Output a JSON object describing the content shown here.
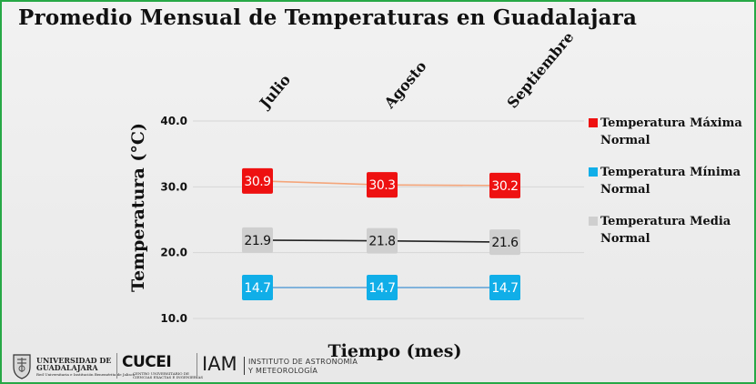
{
  "title": "Promedio Mensual de Temperaturas en Guadalajara",
  "colors": {
    "frame": "#27a846",
    "max_box": "#ee1111",
    "max_line": "#f4a57a",
    "min_box": "#10aee8",
    "min_line": "#5d9fd6",
    "media_box": "#cfcfcf",
    "media_line": "#222222"
  },
  "chart_data": {
    "type": "line",
    "title": "Promedio Mensual de Temperaturas en Guadalajara",
    "categories": [
      "Julio",
      "Agosto",
      "Septiembre"
    ],
    "xlabel": "Tiempo (mes)",
    "ylabel": "Temperatura  (°C)",
    "ylim": [
      10,
      40
    ],
    "yticks": [
      10,
      20,
      30,
      40
    ],
    "ytick_labels": [
      "10.0",
      "20.0",
      "30.0",
      "40.0"
    ],
    "category_axis": "top",
    "grid": true,
    "legend_position": "right",
    "series": [
      {
        "name": "Temperatura Máxima Normal",
        "values": [
          30.9,
          30.3,
          30.2
        ],
        "labels": [
          "30.9",
          "30.3",
          "30.2"
        ],
        "box_color": "#ee1111",
        "label_color": "#ffffff",
        "line_color": "#f4a57a"
      },
      {
        "name": "Temperatura Mínima Normal",
        "values": [
          14.7,
          14.7,
          14.7
        ],
        "labels": [
          "14.7",
          "14.7",
          "14.7"
        ],
        "box_color": "#10aee8",
        "label_color": "#ffffff",
        "line_color": "#5d9fd6"
      },
      {
        "name": "Temperatura Media Normal",
        "values": [
          21.9,
          21.8,
          21.6
        ],
        "labels": [
          "21.9",
          "21.8",
          "21.6"
        ],
        "box_color": "#cfcfcf",
        "label_color": "#111111",
        "line_color": "#222222"
      }
    ]
  },
  "legend": {
    "items": [
      {
        "line1": "Temperatura Máxima",
        "line2": "Normal",
        "color": "#ee1111"
      },
      {
        "line1": "Temperatura Mínima",
        "line2": "Normal",
        "color": "#10aee8"
      },
      {
        "line1": "Temperatura Media",
        "line2": "Normal",
        "color": "#cfcfcf"
      }
    ]
  },
  "footer": {
    "udg_line1": "UNIVERSIDAD DE",
    "udg_line2": "GUADALAJARA",
    "udg_line3": "Red Universitaria e Institución Benemérita de Jalisco",
    "cucei": "CUCEI",
    "cucei_sub1": "CENTRO UNIVERSITARIO DE",
    "cucei_sub2": "CIENCIAS EXACTAS E INGENIERÍAS",
    "iam": "IAM",
    "iam_sub1": "INSTITUTO DE ASTRONOMÍA",
    "iam_sub2": "Y METEOROLOGÍA"
  }
}
